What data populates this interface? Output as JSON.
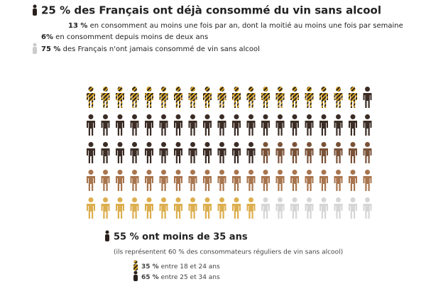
{
  "header": {
    "title": "25 % des Français ont déjà consommé du vin sans alcool",
    "lines": [
      {
        "bold": "13 %",
        "text": "en consomment au moins une fois par an, dont la moitié au moins une fois par semaine"
      },
      {
        "bold": "6%",
        "text": "en consomment depuis moins de deux ans"
      },
      {
        "bold": "75 %",
        "text": "des Français n'ont jamais consommé de vin sans alcool"
      }
    ]
  },
  "chart_data": {
    "type": "pictogram",
    "columns": 20,
    "series": [
      {
        "color": "#d9a521",
        "pattern": "striped",
        "count": 19
      },
      {
        "color": "#3b2c25",
        "count": 33
      },
      {
        "color": "#7a5238",
        "count": 8
      },
      {
        "color": "#a8754e",
        "count": 20
      },
      {
        "color": "#dcae4e",
        "count": 12
      },
      {
        "color": "#d6d6d6",
        "count": 8
      }
    ]
  },
  "footer": {
    "title": "55 % ont moins de 35 ans",
    "note": "(ils représentent 60 % des consommateurs réguliers de vin sans alcool)",
    "lines": [
      {
        "bold": "35 %",
        "text": "entre 18 et 24 ans"
      },
      {
        "bold": "65 %",
        "text": "entre 25 et 34 ans"
      }
    ]
  }
}
